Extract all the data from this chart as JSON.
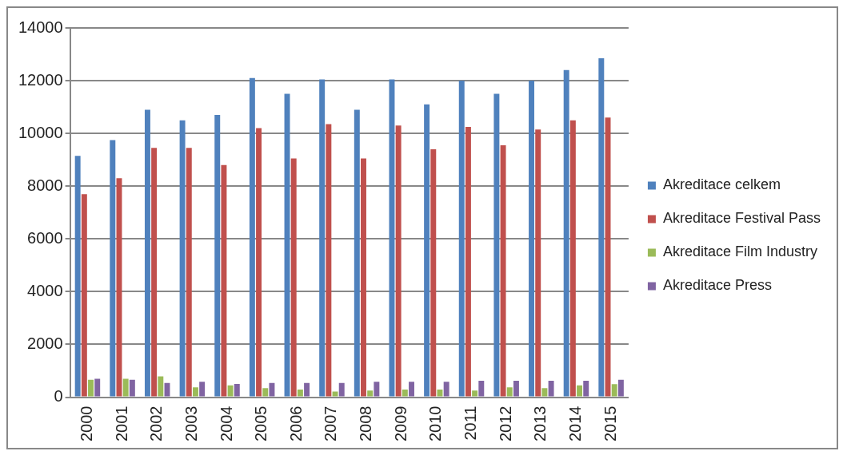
{
  "chart_data": {
    "type": "bar",
    "categories": [
      "2000",
      "2001",
      "2002",
      "2003",
      "2004",
      "2005",
      "2006",
      "2007",
      "2008",
      "2009",
      "2010",
      "2011",
      "2012",
      "2013",
      "2014",
      "2015"
    ],
    "series": [
      {
        "name": "Akreditace celkem",
        "color": "#4f81bd",
        "values": [
          9150,
          9750,
          10900,
          10500,
          10700,
          12100,
          11500,
          12050,
          10900,
          12050,
          11100,
          12000,
          11500,
          12000,
          12400,
          12850
        ]
      },
      {
        "name": "Akreditace Festival Pass",
        "color": "#c0504d",
        "values": [
          7700,
          8300,
          9450,
          9450,
          8800,
          10200,
          9050,
          10350,
          9050,
          10300,
          9400,
          10250,
          9550,
          10150,
          10500,
          10600
        ]
      },
      {
        "name": "Akreditace Film Industry",
        "color": "#9bbb59",
        "values": [
          660,
          700,
          790,
          370,
          450,
          340,
          290,
          210,
          250,
          290,
          290,
          250,
          370,
          340,
          450,
          490
        ]
      },
      {
        "name": "Akreditace Press",
        "color": "#8064a2",
        "values": [
          700,
          660,
          540,
          580,
          500,
          540,
          540,
          540,
          580,
          580,
          580,
          620,
          620,
          620,
          620,
          660
        ]
      }
    ],
    "ylim": [
      0,
      14000
    ],
    "yticks": [
      0,
      2000,
      4000,
      6000,
      8000,
      10000,
      12000,
      14000
    ],
    "grid": "y",
    "legend": "right"
  }
}
